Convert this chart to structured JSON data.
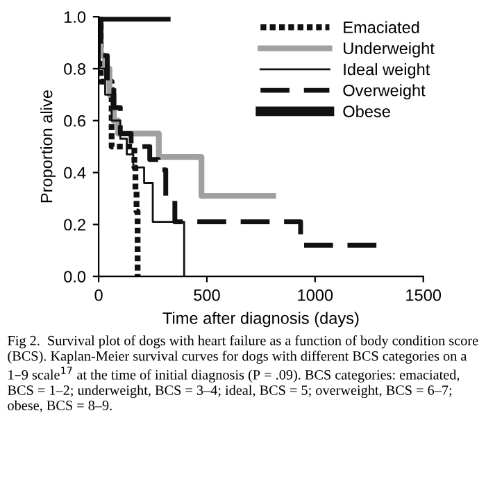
{
  "chart_data": {
    "type": "step",
    "xlabel": "Time after diagnosis (days)",
    "ylabel": "Proportion alive",
    "xlim": [
      0,
      1500
    ],
    "xticks": [
      0,
      500,
      1000,
      1500
    ],
    "ylim": [
      0,
      1.0
    ],
    "yticks": [
      {
        "value": 0,
        "label": "0.0"
      },
      {
        "value": 0.2,
        "label": "0.2"
      },
      {
        "value": 0.4,
        "label": "0.4"
      },
      {
        "value": 0.6,
        "label": "0.6"
      },
      {
        "value": 0.8,
        "label": "0.8"
      },
      {
        "value": 1.0,
        "label": "1.0"
      }
    ],
    "grid": false,
    "legend": "top right",
    "marker": "none",
    "series": [
      {
        "name": "Emaciated",
        "color": "#111111",
        "line_style": "dotted",
        "x": [
          0,
          10,
          60,
          165,
          170,
          175,
          180
        ],
        "values": [
          1,
          0.75,
          0.5,
          0.42,
          0.33,
          0.25,
          0
        ]
      },
      {
        "name": "Underweight",
        "color": "#a0a0a0",
        "line_style": "solid",
        "x": [
          0,
          10,
          30,
          50,
          70,
          90,
          278,
          475,
          806
        ],
        "values": [
          1,
          0.85,
          0.8,
          0.7,
          0.6,
          0.55,
          0.46,
          0.31,
          0.31
        ]
      },
      {
        "name": "Ideal weight",
        "color": "#111111",
        "line_style": "solid",
        "x": [
          0,
          5,
          30,
          60,
          100,
          130,
          160,
          210,
          250,
          395
        ],
        "values": [
          1,
          0.8,
          0.7,
          0.6,
          0.53,
          0.47,
          0.42,
          0.36,
          0.21,
          0
        ]
      },
      {
        "name": "Overweight",
        "color": "#111111",
        "line_style": "dashed",
        "x": [
          0,
          10,
          40,
          70,
          100,
          150,
          236,
          275,
          310,
          352,
          933,
          1284
        ],
        "values": [
          1,
          0.85,
          0.75,
          0.65,
          0.55,
          0.5,
          0.45,
          0.41,
          0.3,
          0.21,
          0.12,
          0.12
        ]
      },
      {
        "name": "Obese",
        "color": "#111111",
        "line_style": "solid",
        "x": [
          0,
          310
        ],
        "values": [
          1,
          1
        ]
      }
    ],
    "annotations": [
      "Fig 2.  Survival plot of dogs with heart failure as a function of body condition score (BCS). Kaplan-Meier survival curves for dogs with different BCS categories on a 1–9 scale$^{17}$ at the time of initial diagnosis (P = .09). BCS categories: emaciated, BCS = 1–2; underweight, BCS = 3–4; ideal, BCS = 5; overweight, BCS = 6–7; obese, BCS = 8–9."
    ]
  }
}
